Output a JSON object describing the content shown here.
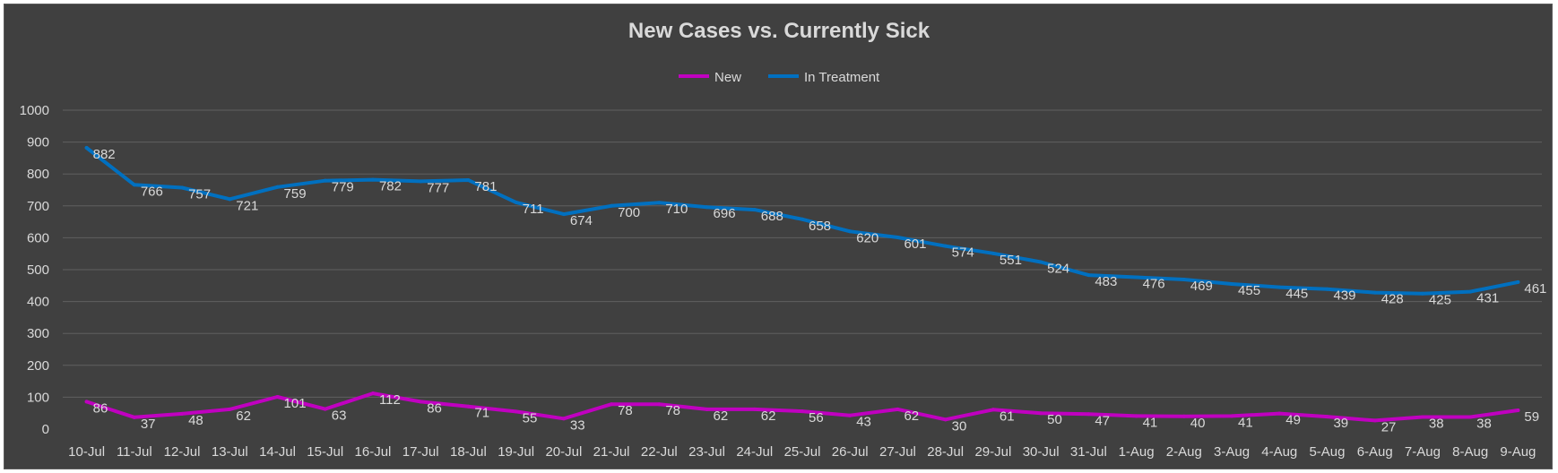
{
  "chart_data": {
    "type": "line",
    "title": "New Cases vs. Currently Sick",
    "xlabel": "",
    "ylabel": "",
    "ylim": [
      0,
      1000
    ],
    "yticks": [
      0,
      100,
      200,
      300,
      400,
      500,
      600,
      700,
      800,
      900,
      1000
    ],
    "grid": true,
    "legend_position": "top",
    "categories": [
      "10-Jul",
      "11-Jul",
      "12-Jul",
      "13-Jul",
      "14-Jul",
      "15-Jul",
      "16-Jul",
      "17-Jul",
      "18-Jul",
      "19-Jul",
      "20-Jul",
      "21-Jul",
      "22-Jul",
      "23-Jul",
      "24-Jul",
      "25-Jul",
      "26-Jul",
      "27-Jul",
      "28-Jul",
      "29-Jul",
      "30-Jul",
      "31-Jul",
      "1-Aug",
      "2-Aug",
      "3-Aug",
      "4-Aug",
      "5-Aug",
      "6-Aug",
      "7-Aug",
      "8-Aug",
      "9-Aug"
    ],
    "series": [
      {
        "name": "New",
        "color": "#c000c0",
        "values": [
          86,
          37,
          48,
          62,
          101,
          63,
          112,
          86,
          71,
          55,
          33,
          78,
          78,
          62,
          62,
          56,
          43,
          62,
          30,
          61,
          50,
          47,
          41,
          40,
          41,
          49,
          39,
          27,
          38,
          38,
          59
        ]
      },
      {
        "name": "In Treatment",
        "color": "#0070c0",
        "values": [
          882,
          766,
          757,
          721,
          759,
          779,
          782,
          777,
          781,
          711,
          674,
          700,
          710,
          696,
          688,
          658,
          620,
          601,
          574,
          551,
          524,
          483,
          476,
          469,
          455,
          445,
          439,
          428,
          425,
          431,
          461
        ]
      }
    ]
  },
  "colors": {
    "background": "#404040",
    "grid": "#5f5f5f",
    "text": "#d9d9d9"
  }
}
